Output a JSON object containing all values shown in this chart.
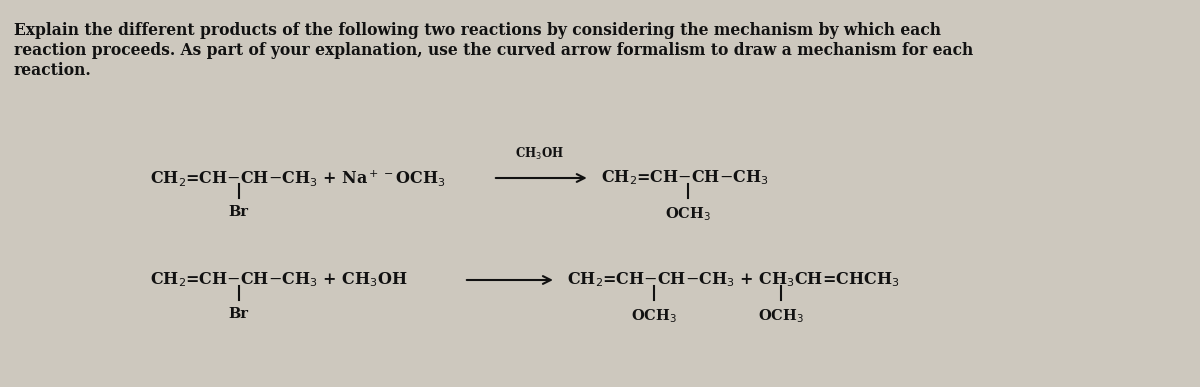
{
  "bg_color": "#cdc8be",
  "text_color": "#111111",
  "fig_width": 12.0,
  "fig_height": 3.87,
  "dpi": 100,
  "para_line1": "Explain the different products of the following two reactions by considering the mechanism by which each",
  "para_line2": "reaction proceeds. As part of your explanation, use the curved arrow formalism to draw a mechanism for each",
  "para_line3": "reaction.",
  "font_size_para": 11.2,
  "font_size_rxn": 11.5,
  "font_size_sub": 10.5,
  "font_size_cond": 8.5,
  "font_family": "DejaVu Serif"
}
